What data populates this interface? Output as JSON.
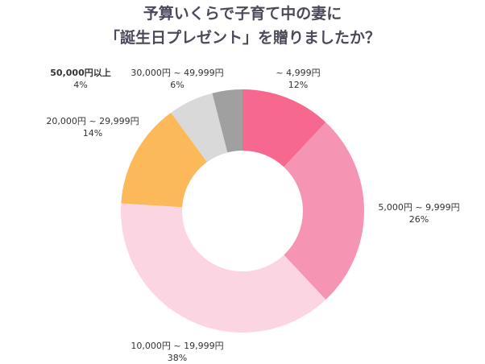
{
  "chart_data": {
    "type": "pie",
    "donut": true,
    "title": [
      "予算いくらで子育て中の妻に",
      "「誕生日プレゼント」を贈りましたか？"
    ],
    "categories": [
      "~ 4,999円",
      "5,000円 ~ 9,999円",
      "10,000円 ~ 19,999円",
      "20,000円 ~ 29,999円",
      "30,000円 ~ 49,999円",
      "50,000円以上"
    ],
    "values": [
      12,
      26,
      38,
      14,
      6,
      4
    ],
    "value_labels": [
      "12%",
      "26%",
      "38%",
      "14%",
      "6%",
      "4%"
    ],
    "colors": [
      "#f7688f",
      "#f595b3",
      "#fcd5e3",
      "#fbb95a",
      "#d9d9d9",
      "#a0a0a0"
    ],
    "start": "top",
    "direction": "clockwise"
  }
}
